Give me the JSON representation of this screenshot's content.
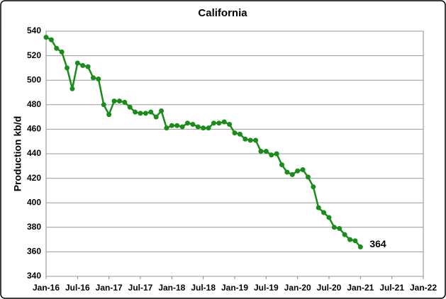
{
  "chart_data": {
    "type": "line",
    "title": "California",
    "ylabel": "Production kb/d",
    "x": [
      "2016-01",
      "2016-02",
      "2016-03",
      "2016-04",
      "2016-05",
      "2016-06",
      "2016-07",
      "2016-08",
      "2016-09",
      "2016-10",
      "2016-11",
      "2016-12",
      "2017-01",
      "2017-02",
      "2017-03",
      "2017-04",
      "2017-05",
      "2017-06",
      "2017-07",
      "2017-08",
      "2017-09",
      "2017-10",
      "2017-11",
      "2017-12",
      "2018-01",
      "2018-02",
      "2018-03",
      "2018-04",
      "2018-05",
      "2018-06",
      "2018-07",
      "2018-08",
      "2018-09",
      "2018-10",
      "2018-11",
      "2018-12",
      "2019-01",
      "2019-02",
      "2019-03",
      "2019-04",
      "2019-05",
      "2019-06",
      "2019-07",
      "2019-08",
      "2019-09",
      "2019-10",
      "2019-11",
      "2019-12",
      "2020-01",
      "2020-02",
      "2020-03",
      "2020-04",
      "2020-05",
      "2020-06",
      "2020-07",
      "2020-08",
      "2020-09",
      "2020-10",
      "2020-11",
      "2020-12",
      "2021-01"
    ],
    "series": [
      {
        "name": "California",
        "color": "#1a8c1a",
        "values": [
          535,
          533,
          526,
          523,
          510,
          493,
          514,
          512,
          511,
          502,
          501,
          480,
          472,
          483,
          483,
          482,
          478,
          474,
          473,
          473,
          474,
          470,
          475,
          461,
          463,
          463,
          462,
          465,
          464,
          462,
          461,
          461,
          465,
          465,
          466,
          464,
          457,
          456,
          452,
          451,
          451,
          442,
          442,
          439,
          440,
          431,
          425,
          423,
          426,
          427,
          421,
          413,
          396,
          392,
          388,
          380,
          379,
          374,
          370,
          369,
          364
        ]
      }
    ],
    "xlim": [
      "2016-01",
      "2022-01"
    ],
    "xticks": [
      {
        "value": "2016-01",
        "label": "Jan-16"
      },
      {
        "value": "2016-07",
        "label": "Jul-16"
      },
      {
        "value": "2017-01",
        "label": "Jan-17"
      },
      {
        "value": "2017-07",
        "label": "Jul-17"
      },
      {
        "value": "2018-01",
        "label": "Jan-18"
      },
      {
        "value": "2018-07",
        "label": "Jul-18"
      },
      {
        "value": "2019-01",
        "label": "Jan-19"
      },
      {
        "value": "2019-07",
        "label": "Jul-19"
      },
      {
        "value": "2020-01",
        "label": "Jan-20"
      },
      {
        "value": "2020-07",
        "label": "Jul-20"
      },
      {
        "value": "2021-01",
        "label": "Jan-21"
      },
      {
        "value": "2021-07",
        "label": "Jul-21"
      },
      {
        "value": "2022-01",
        "label": "Jan-22"
      }
    ],
    "ylim": [
      340,
      540
    ],
    "yticks": [
      340,
      360,
      380,
      400,
      420,
      440,
      460,
      480,
      500,
      520,
      540
    ],
    "grid": true
  }
}
